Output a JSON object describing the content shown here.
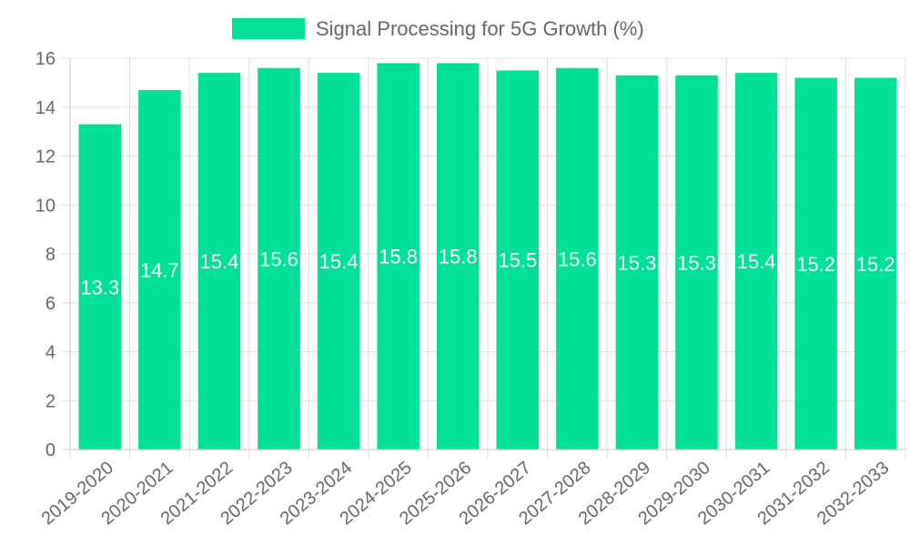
{
  "chart_data": {
    "type": "bar",
    "title": "",
    "xlabel": "",
    "ylabel": "",
    "ylim": [
      0,
      16
    ],
    "y_tick_step": 2,
    "grid": true,
    "legend_position": "top",
    "categories": [
      "2019-2020",
      "2020-2021",
      "2021-2022",
      "2022-2023",
      "2023-2024",
      "2024-2025",
      "2025-2026",
      "2026-2027",
      "2027-2028",
      "2028-2029",
      "2029-2030",
      "2030-2031",
      "2031-2032",
      "2032-2033"
    ],
    "series": [
      {
        "name": "Signal Processing for 5G Growth (%)",
        "color": "#00e096",
        "values": [
          13.3,
          14.7,
          15.4,
          15.6,
          15.4,
          15.8,
          15.8,
          15.5,
          15.6,
          15.3,
          15.3,
          15.4,
          15.2,
          15.2
        ]
      }
    ],
    "colors": {
      "grid": "#e0e0e0",
      "axis": "#c8c8c8",
      "tick_text": "#666666",
      "data_label": "#ffffff"
    }
  }
}
